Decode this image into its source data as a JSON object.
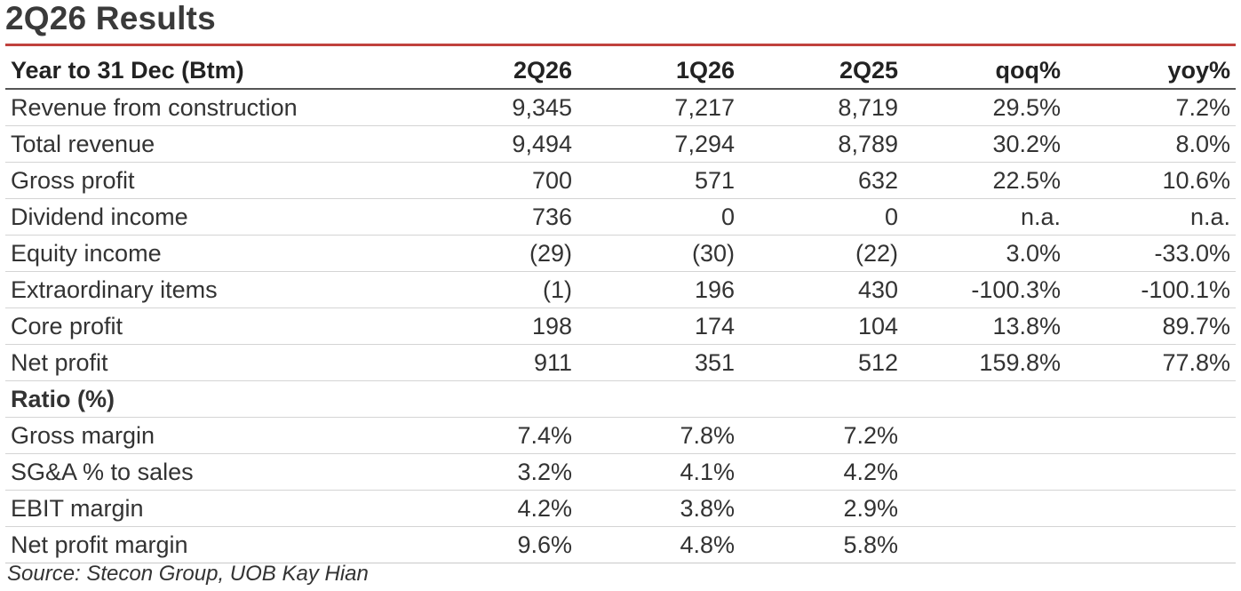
{
  "title": "2Q26 Results",
  "header": {
    "label": "Year to 31 Dec (Btm)",
    "cols": [
      "2Q26",
      "1Q26",
      "2Q25",
      "qoq%",
      "yoy%"
    ]
  },
  "rows": [
    {
      "label": "Revenue from construction",
      "v": [
        "9,345",
        "7,217",
        "8,719",
        "29.5%",
        "7.2%"
      ]
    },
    {
      "label": "Total revenue",
      "v": [
        "9,494",
        "7,294",
        "8,789",
        "30.2%",
        "8.0%"
      ]
    },
    {
      "label": "Gross profit",
      "v": [
        "700",
        "571",
        "632",
        "22.5%",
        "10.6%"
      ]
    },
    {
      "label": "Dividend income",
      "v": [
        "736",
        "0",
        "0",
        "n.a.",
        "n.a."
      ]
    },
    {
      "label": "Equity income",
      "v": [
        "(29)",
        "(30)",
        "(22)",
        "3.0%",
        "-33.0%"
      ]
    },
    {
      "label": "Extraordinary items",
      "v": [
        "(1)",
        "196",
        "430",
        "-100.3%",
        "-100.1%"
      ]
    },
    {
      "label": "Core profit",
      "v": [
        "198",
        "174",
        "104",
        "13.8%",
        "89.7%"
      ]
    },
    {
      "label": "Net profit",
      "v": [
        "911",
        "351",
        "512",
        "159.8%",
        "77.8%"
      ]
    }
  ],
  "ratio_section": "Ratio (%)",
  "ratios": [
    {
      "label": "Gross margin",
      "v": [
        "7.4%",
        "7.8%",
        "7.2%"
      ]
    },
    {
      "label": "SG&A % to sales",
      "v": [
        "3.2%",
        "4.1%",
        "4.2%"
      ]
    },
    {
      "label": "EBIT margin",
      "v": [
        "4.2%",
        "3.8%",
        "2.9%"
      ]
    },
    {
      "label": "Net profit margin",
      "v": [
        "9.6%",
        "4.8%",
        "5.8%"
      ]
    }
  ],
  "source": "Source: Stecon Group, UOB Kay Hian",
  "colors": {
    "accent_rule": "#c0413d",
    "title": "#3a3a3a"
  }
}
